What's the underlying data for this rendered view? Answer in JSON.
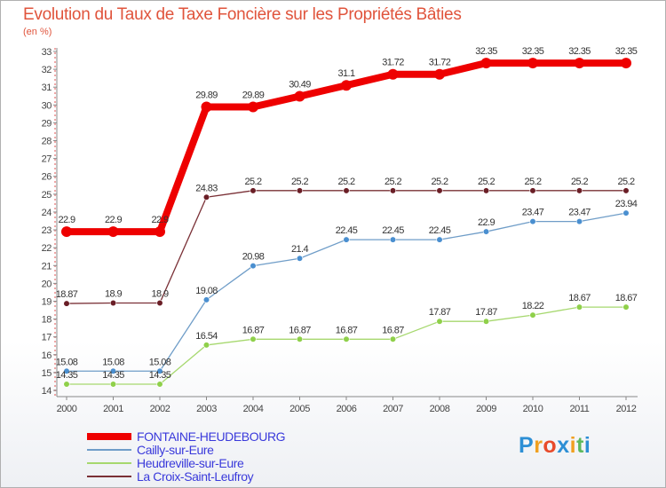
{
  "chart_data": {
    "type": "line",
    "title": "Evolution du Taux de Taxe Foncière sur les Propriétés Bâties",
    "ylabel": "(en %)",
    "categories": [
      "2000",
      "2001",
      "2002",
      "2003",
      "2004",
      "2005",
      "2006",
      "2007",
      "2008",
      "2009",
      "2010",
      "2011",
      "2012"
    ],
    "ylim": [
      14,
      33
    ],
    "yticks": [
      14,
      15,
      16,
      17,
      18,
      19,
      20,
      21,
      22,
      23,
      24,
      25,
      26,
      27,
      28,
      29,
      30,
      31,
      32,
      33
    ],
    "grid": false,
    "legend_position": "bottom-left",
    "series": [
      {
        "name": "FONTAINE-HEUDEBOURG",
        "color": "#ee0000",
        "emphasis": true,
        "values": [
          22.9,
          22.9,
          22.9,
          29.89,
          29.89,
          30.49,
          31.1,
          31.72,
          31.72,
          32.35,
          32.35,
          32.35,
          32.35
        ],
        "labels": [
          "22.9",
          "22.9",
          "22.9",
          "29.89",
          "29.89",
          "30.49",
          "31.1",
          "31.72",
          "31.72",
          "32.35",
          "32.35",
          "32.35",
          "32.35"
        ]
      },
      {
        "name": "Cailly-sur-Eure",
        "color": "#6f9dc8",
        "marker_color": "#4a8fd0",
        "values": [
          15.08,
          15.08,
          15.08,
          19.08,
          20.98,
          21.4,
          22.45,
          22.45,
          22.45,
          22.9,
          23.47,
          23.47,
          23.94
        ],
        "labels": [
          "15.08",
          "15.08",
          "15.08",
          "19.08",
          "20.98",
          "21.4",
          "22.45",
          "22.45",
          "22.45",
          "22.9",
          "23.47",
          "23.47",
          "23.94"
        ]
      },
      {
        "name": "Heudreville-sur-Eure",
        "color": "#a6d86e",
        "marker_color": "#8fd04a",
        "values": [
          14.35,
          14.35,
          14.35,
          16.54,
          16.87,
          16.87,
          16.87,
          16.87,
          17.87,
          17.87,
          18.22,
          18.67,
          18.67
        ],
        "labels": [
          "14.35",
          "14.35",
          "14.35",
          "16.54",
          "16.87",
          "16.87",
          "16.87",
          "16.87",
          "17.87",
          "17.87",
          "18.22",
          "18.67",
          "18.67"
        ]
      },
      {
        "name": "La Croix-Saint-Leufroy",
        "color": "#7a3036",
        "marker_color": "#6a1e26",
        "values": [
          18.87,
          18.9,
          18.9,
          24.83,
          25.2,
          25.2,
          25.2,
          25.2,
          25.2,
          25.2,
          25.2,
          25.2,
          25.2
        ],
        "labels": [
          "18.87",
          "18.9",
          "18.9",
          "24.83",
          "25.2",
          "25.2",
          "25.2",
          "25.2",
          "25.2",
          "25.2",
          "25.2",
          "25.2",
          "25.2"
        ]
      }
    ]
  },
  "legend": {
    "items": [
      {
        "label": "FONTAINE-HEUDEBOURG",
        "color": "#ee0000",
        "text_color": "#3a3adb"
      },
      {
        "label": "Cailly-sur-Eure",
        "color": "#6f9dc8",
        "text_color": "#3a3adb"
      },
      {
        "label": "Heudreville-sur-Eure",
        "color": "#a6d86e",
        "text_color": "#3a3adb"
      },
      {
        "label": "La Croix-Saint-Leufroy",
        "color": "#7a3036",
        "text_color": "#3a3adb"
      }
    ]
  },
  "brand": {
    "parts": [
      {
        "text": "P",
        "color": "#2d8fd5"
      },
      {
        "text": "r",
        "color": "#f0a020"
      },
      {
        "text": "o",
        "color": "#e84a2a"
      },
      {
        "text": "x",
        "color": "#2d8fd5"
      },
      {
        "text": "i",
        "color": "#f0a020"
      },
      {
        "text": "t",
        "color": "#5cb85c"
      },
      {
        "text": "i",
        "color": "#2d8fd5"
      }
    ]
  }
}
